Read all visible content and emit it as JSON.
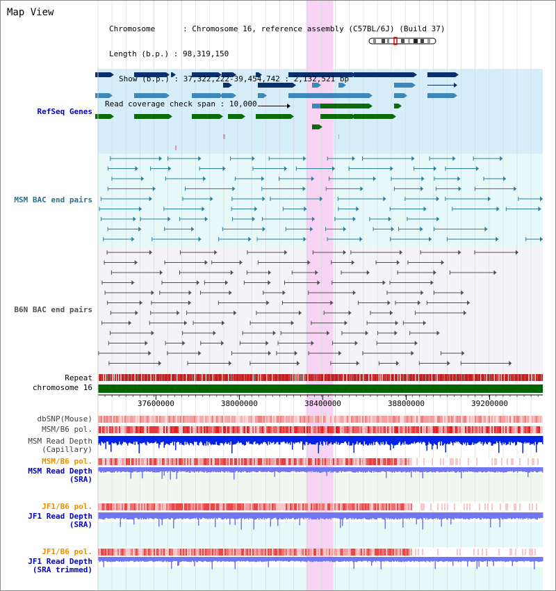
{
  "header": {
    "title": "Map View",
    "info": [
      {
        "key": "Chromosome",
        "sep": ":",
        "value": "Chromosome 16, reference assembly (C57BL/6J) (Build 37)"
      },
      {
        "key": "Length (b.p.)",
        "sep": ":",
        "value": "98,319,150"
      },
      {
        "key": "Show (b.p.)",
        "sep": ":",
        "value": "37,322,222-39,454,742 : 2,132,521 bp"
      },
      {
        "key": "Read coverage check span",
        "sep": ":",
        "value": "10,000"
      }
    ]
  },
  "tracks": {
    "refseq_genes": "RefSeq Genes",
    "msm_bac": "MSM BAC end pairs",
    "b6n_bac": "B6N BAC end pairs",
    "repeat": "Repeat",
    "chromosome": "chromosome 16",
    "dbsnp": "dbSNP(Mouse)",
    "msm_b6_pol_1": "MSM/B6 pol.",
    "msm_read_depth_cap": "MSM Read Depth\n(Capillary)",
    "msm_b6_pol_2": "MSM/B6 pol.",
    "msm_read_depth_sra": "MSM Read Depth\n(SRA)",
    "jf1_b6_pol_1": "JF1/B6 pol.",
    "jf1_read_depth_sra": "JF1 Read Depth\n(SRA)",
    "jf1_b6_pol_2": "JF1/B6 pol.",
    "jf1_read_depth_trimmed": "JF1 Read Depth\n(SRA trimmed)"
  },
  "axis": {
    "tick_labels": [
      "37600000",
      "38000000",
      "38400000",
      "38800000",
      "39200000"
    ],
    "tick_values": [
      37600000,
      38000000,
      38400000,
      38800000,
      39200000
    ]
  },
  "view": {
    "start_bp": 37322222,
    "end_bp": 39454742,
    "highlight_start_bp": 38320000,
    "highlight_end_bp": 38450000
  },
  "colors": {
    "highlight": "#f8d4f4",
    "refseq_bg": "#d6eefa",
    "msm_bac_bg": "#e6f8f8",
    "b6n_bac_bg": "#f4f4f8",
    "gene_dark": "#0b2f6b",
    "gene_mid": "#3d88b8",
    "gene_green": "#0b6b0b",
    "msm_bac": "#2c7e9c",
    "b6n_bac": "#505050",
    "chromosome": "#006400",
    "depth_dark": "#0022e8",
    "depth_light": "#6f76f0",
    "label_blue": "#0000c0",
    "label_orange": "#e89000",
    "label_gray": "#404040"
  }
}
